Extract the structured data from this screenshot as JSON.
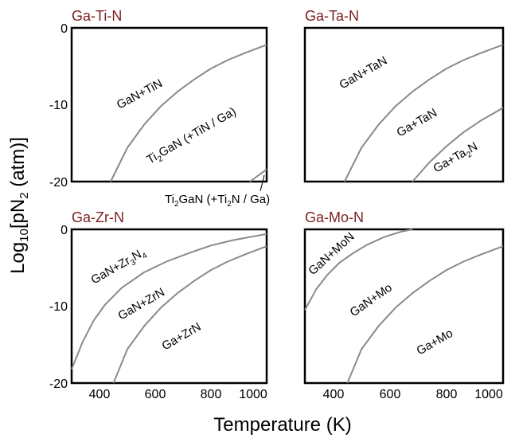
{
  "chart_data": {
    "type": "line",
    "xlabel": "Temperature (K)",
    "ylabel": "Log10[pN2 (atm)]",
    "xlim": [
      300,
      1000
    ],
    "ylim": [
      -20,
      0
    ],
    "x_ticks": [
      "400",
      "600",
      "800",
      "1000"
    ],
    "y_ticks": [
      "0",
      "-10",
      "-20"
    ],
    "colors": {
      "curve": "#8a8a8a",
      "title": "#7a1f1f"
    },
    "panels": [
      {
        "title": "Ga-Ti-N",
        "series": [
          {
            "x": [
              440,
              500,
              560,
              620,
              680,
              740,
              800,
              860,
              920,
              1000
            ],
            "y": [
              -20,
              -15.6,
              -12.6,
              -10.2,
              -8.3,
              -6.7,
              -5.3,
              -4.2,
              -3.3,
              -2.2
            ]
          },
          {
            "x": [
              940,
              970,
              1000
            ],
            "y": [
              -20,
              -19.2,
              -18.4
            ]
          }
        ],
        "labels": [
          {
            "text": "GaN+TiN"
          },
          {
            "text": "Ti2GaN (+TiN / Ga)"
          },
          {
            "text": "Ti2GaN (+Ti2N / Ga)"
          }
        ]
      },
      {
        "title": "Ga-Ta-N",
        "series": [
          {
            "x": [
              440,
              500,
              560,
              620,
              680,
              740,
              800,
              860,
              920,
              1000
            ],
            "y": [
              -20,
              -15.6,
              -12.6,
              -10.2,
              -8.3,
              -6.7,
              -5.3,
              -4.2,
              -3.3,
              -2.2
            ]
          },
          {
            "x": [
              680,
              740,
              800,
              860,
              920,
              1000
            ],
            "y": [
              -20,
              -17.5,
              -15.4,
              -13.6,
              -12.1,
              -10.4
            ]
          }
        ],
        "labels": [
          {
            "text": "GaN+TaN"
          },
          {
            "text": "Ga+TaN"
          },
          {
            "text": "Ga+Ta2N"
          }
        ]
      },
      {
        "title": "Ga-Zr-N",
        "series": [
          {
            "x": [
              300,
              340,
              380,
              420,
              480,
              560,
              640,
              720,
              800,
              880,
              1000
            ],
            "y": [
              -18.2,
              -14.6,
              -11.8,
              -9.8,
              -7.6,
              -5.6,
              -4.2,
              -3.1,
              -2.1,
              -1.4,
              -0.6
            ]
          },
          {
            "x": [
              450,
              500,
              560,
              620,
              680,
              740,
              800,
              860,
              920,
              1000
            ],
            "y": [
              -20,
              -15.6,
              -12.6,
              -10.2,
              -8.3,
              -6.7,
              -5.3,
              -4.2,
              -3.3,
              -2.2
            ]
          }
        ],
        "labels": [
          {
            "text": "GaN+Zr3N4"
          },
          {
            "text": "GaN+ZrN"
          },
          {
            "text": "Ga+ZrN"
          }
        ]
      },
      {
        "title": "Ga-Mo-N",
        "series": [
          {
            "x": [
              300,
              340,
              380,
              420,
              470,
              520,
              580,
              640,
              680
            ],
            "y": [
              -10.5,
              -7.8,
              -5.9,
              -4.4,
              -3.1,
              -2.0,
              -1.0,
              -0.3,
              0
            ]
          },
          {
            "x": [
              450,
              500,
              560,
              620,
              680,
              740,
              800,
              860,
              920,
              1000
            ],
            "y": [
              -20,
              -15.6,
              -12.6,
              -10.2,
              -8.3,
              -6.7,
              -5.3,
              -4.2,
              -3.3,
              -2.2
            ]
          }
        ],
        "labels": [
          {
            "text": "GaN+MoN"
          },
          {
            "text": "GaN+Mo"
          },
          {
            "text": "Ga+Mo"
          }
        ]
      }
    ]
  }
}
